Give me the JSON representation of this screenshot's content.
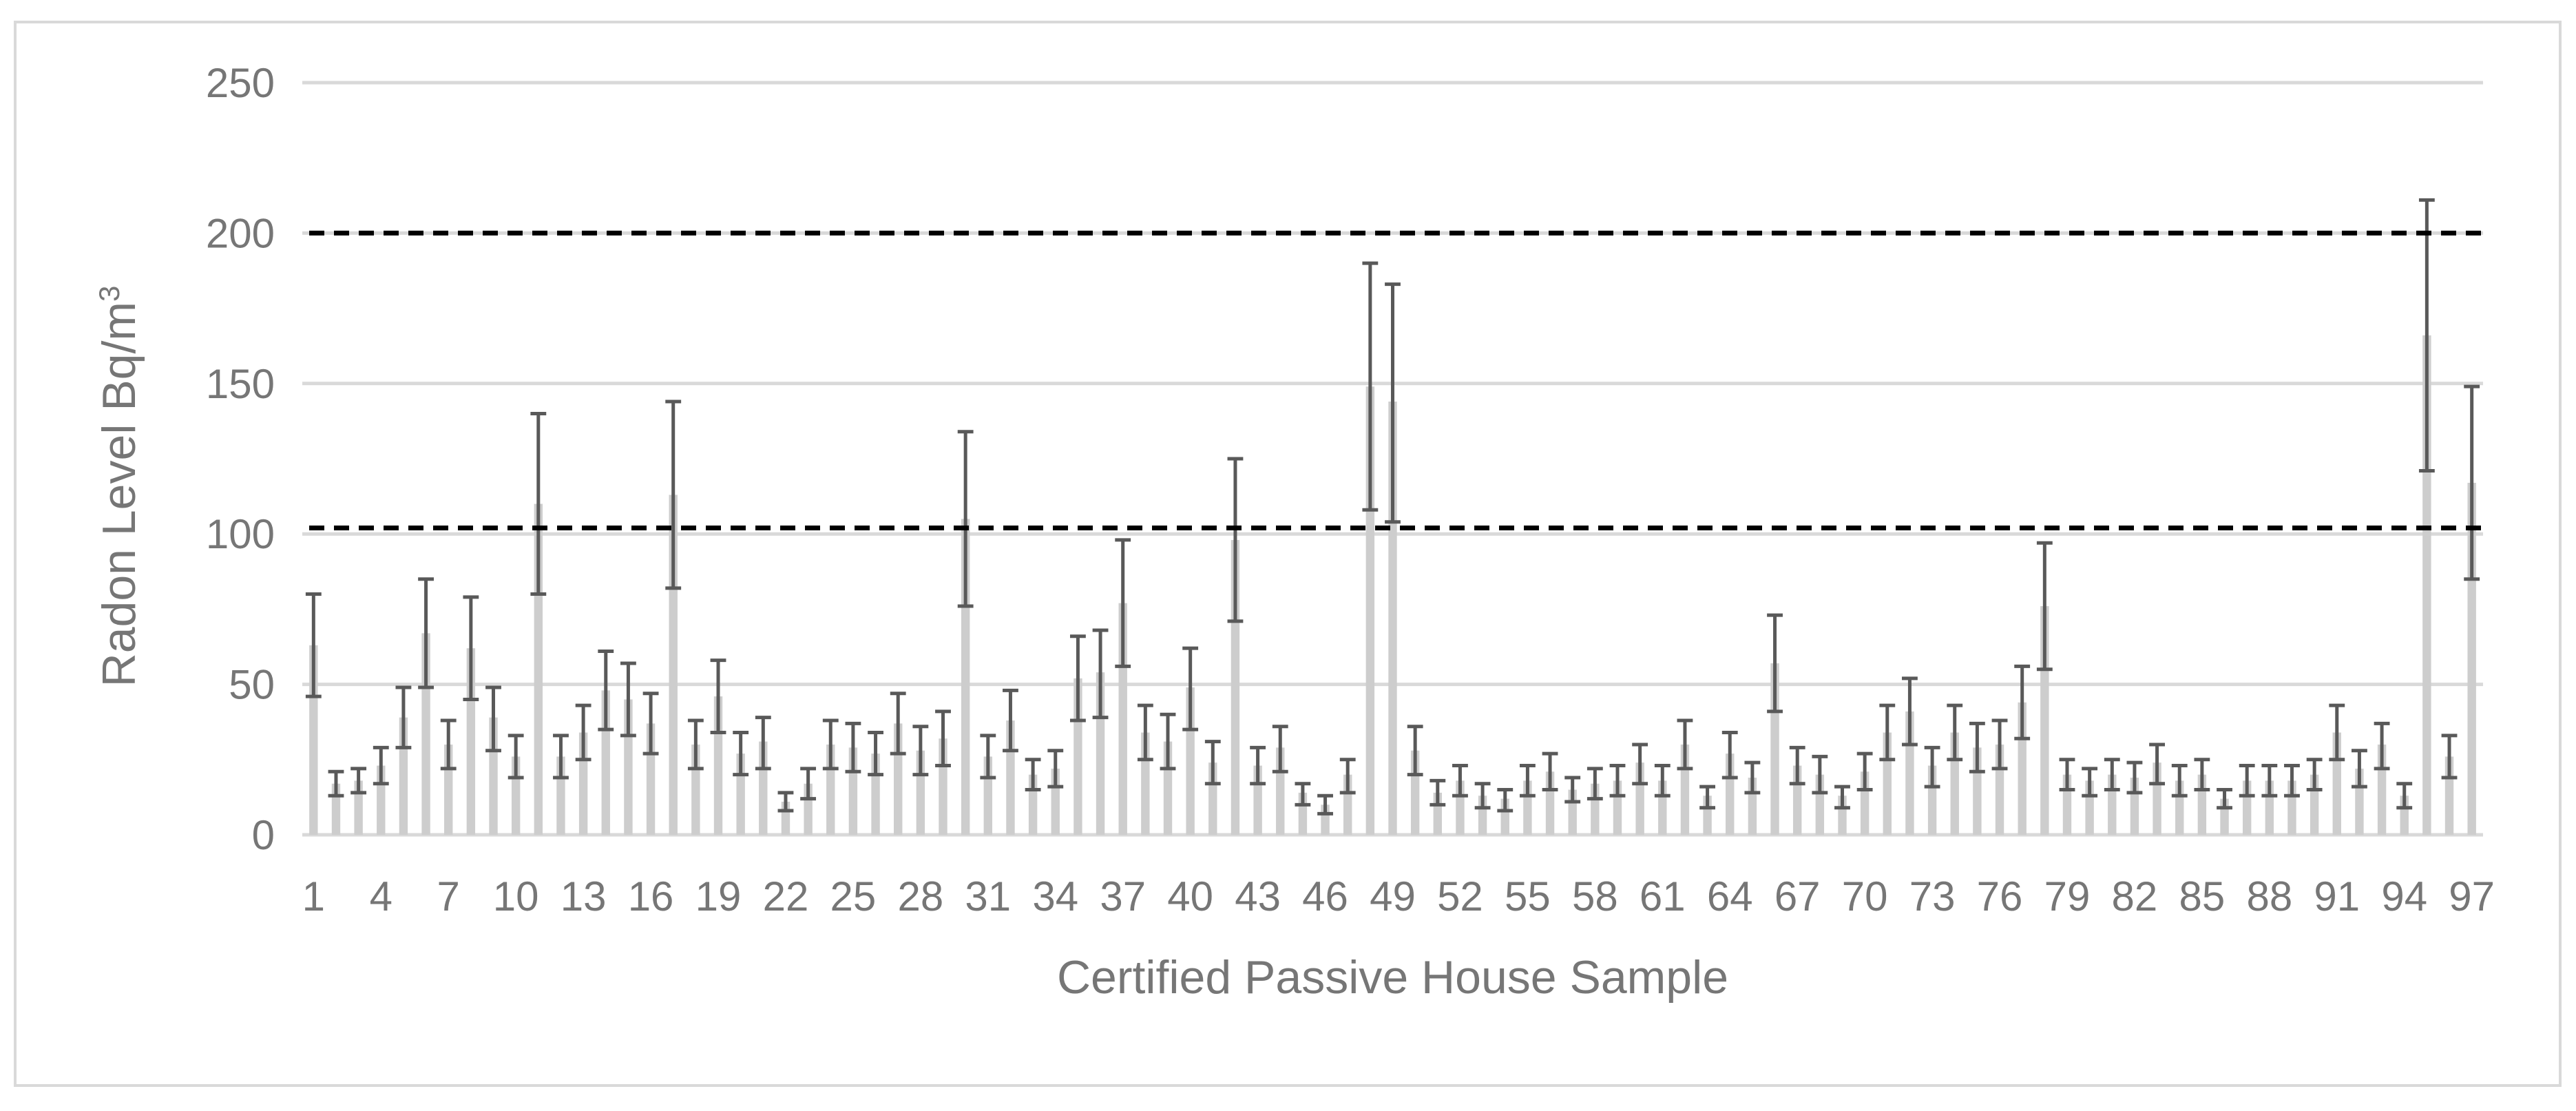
{
  "chart_data": {
    "type": "bar",
    "xlabel": "Certified Passive House Sample",
    "ylabel": "Radon Level Bq/m",
    "ylabel_superscript": "3",
    "ylim": [
      0,
      250
    ],
    "y_ticks": [
      0,
      50,
      100,
      150,
      200,
      250
    ],
    "x_tick_labels": [
      "1",
      "4",
      "7",
      "10",
      "13",
      "16",
      "19",
      "22",
      "25",
      "28",
      "31",
      "34",
      "37",
      "40",
      "43",
      "46",
      "49",
      "52",
      "55",
      "58",
      "61",
      "64",
      "67",
      "70",
      "73",
      "76",
      "79",
      "82",
      "85",
      "88",
      "91",
      "94",
      "97"
    ],
    "x_tick_positions": [
      1,
      4,
      7,
      10,
      13,
      16,
      19,
      22,
      25,
      28,
      31,
      34,
      37,
      40,
      43,
      46,
      49,
      52,
      55,
      58,
      61,
      64,
      67,
      70,
      73,
      76,
      79,
      82,
      85,
      88,
      91,
      94,
      97
    ],
    "grid": "horizontal",
    "bar_color": "#cdcdcd",
    "error_bar_color": "#595959",
    "reference_lines": [
      {
        "value": 200,
        "style": "dashed",
        "color": "#000000"
      },
      {
        "value": 102,
        "style": "dashed",
        "color": "#000000"
      }
    ],
    "categories": [
      1,
      2,
      3,
      4,
      5,
      6,
      7,
      8,
      9,
      10,
      11,
      12,
      13,
      14,
      15,
      16,
      17,
      18,
      19,
      20,
      21,
      22,
      23,
      24,
      25,
      26,
      27,
      28,
      29,
      30,
      31,
      32,
      33,
      34,
      35,
      36,
      37,
      38,
      39,
      40,
      41,
      42,
      43,
      44,
      45,
      46,
      47,
      48,
      49,
      50,
      51,
      52,
      53,
      54,
      55,
      56,
      57,
      58,
      59,
      60,
      61,
      62,
      63,
      64,
      65,
      66,
      67,
      68,
      69,
      70,
      71,
      72,
      73,
      74,
      75,
      76,
      77,
      78,
      79,
      80,
      81,
      82,
      83,
      84,
      85,
      86,
      87,
      88,
      89,
      90,
      91,
      92,
      93,
      94,
      95,
      96,
      97
    ],
    "values": [
      63,
      17,
      18,
      23,
      39,
      67,
      30,
      62,
      39,
      26,
      110,
      26,
      34,
      48,
      45,
      37,
      113,
      30,
      46,
      27,
      31,
      11,
      17,
      30,
      29,
      27,
      37,
      28,
      32,
      105,
      26,
      38,
      20,
      22,
      52,
      54,
      77,
      34,
      31,
      49,
      24,
      98,
      23,
      29,
      14,
      10,
      20,
      149,
      144,
      28,
      14,
      18,
      13,
      12,
      18,
      21,
      15,
      17,
      18,
      24,
      18,
      30,
      13,
      27,
      19,
      57,
      23,
      20,
      13,
      21,
      34,
      41,
      23,
      34,
      29,
      30,
      44,
      76,
      20,
      18,
      20,
      19,
      24,
      18,
      20,
      12,
      18,
      18,
      18,
      20,
      34,
      22,
      30,
      13,
      166,
      26,
      117
    ],
    "error_low": [
      46,
      13,
      14,
      17,
      29,
      49,
      22,
      45,
      28,
      19,
      80,
      19,
      25,
      35,
      33,
      27,
      82,
      22,
      34,
      20,
      22,
      8,
      12,
      22,
      21,
      20,
      27,
      20,
      23,
      76,
      19,
      28,
      15,
      16,
      38,
      39,
      56,
      25,
      22,
      35,
      17,
      71,
      17,
      21,
      10,
      7,
      14,
      108,
      104,
      20,
      10,
      13,
      9,
      8,
      13,
      15,
      11,
      12,
      13,
      17,
      13,
      22,
      9,
      19,
      14,
      41,
      17,
      14,
      9,
      15,
      25,
      30,
      16,
      25,
      21,
      22,
      32,
      55,
      15,
      13,
      15,
      14,
      17,
      13,
      15,
      9,
      13,
      13,
      13,
      15,
      25,
      16,
      22,
      9,
      121,
      19,
      85
    ],
    "error_high": [
      80,
      21,
      22,
      29,
      49,
      85,
      38,
      79,
      49,
      33,
      140,
      33,
      43,
      61,
      57,
      47,
      144,
      38,
      58,
      34,
      39,
      14,
      22,
      38,
      37,
      34,
      47,
      36,
      41,
      134,
      33,
      48,
      25,
      28,
      66,
      68,
      98,
      43,
      40,
      62,
      31,
      125,
      29,
      36,
      17,
      13,
      25,
      190,
      183,
      36,
      18,
      23,
      17,
      15,
      23,
      27,
      19,
      22,
      23,
      30,
      23,
      38,
      16,
      34,
      24,
      73,
      29,
      26,
      16,
      27,
      43,
      52,
      29,
      43,
      37,
      38,
      56,
      97,
      25,
      22,
      25,
      24,
      30,
      23,
      25,
      15,
      23,
      23,
      23,
      25,
      43,
      28,
      37,
      17,
      211,
      33,
      149
    ]
  }
}
